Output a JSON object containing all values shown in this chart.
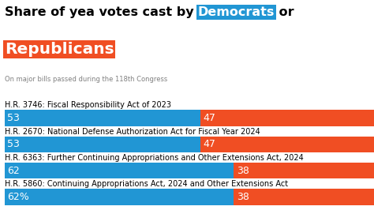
{
  "title_plain": "Share of yea votes cast by ",
  "title_dem": "Democrats",
  "title_or": " or",
  "title_rep": "Republicans",
  "subtitle": "On major bills passed during the 118th Congress",
  "dem_color": "#2196D4",
  "rep_color": "#F04E23",
  "background_color": "#FFFFFF",
  "bars": [
    {
      "label": "H.R. 5860: Continuing Appropriations Act, 2024 and Other Extensions Act",
      "dem": 62,
      "rep": 38,
      "dem_label": "62%",
      "rep_label": "38"
    },
    {
      "label": "H.R. 6363: Further Continuing Appropriations and Other Extensions Act, 2024",
      "dem": 62,
      "rep": 38,
      "dem_label": "62",
      "rep_label": "38"
    },
    {
      "label": "H.R. 2670: National Defense Authorization Act for Fiscal Year 2024",
      "dem": 53,
      "rep": 47,
      "dem_label": "53",
      "rep_label": "47"
    },
    {
      "label": "H.R. 3746: Fiscal Responsibility Act of 2023",
      "dem": 53,
      "rep": 47,
      "dem_label": "53",
      "rep_label": "47"
    }
  ],
  "title_fontsize": 11.5,
  "rep_title_fontsize": 14.5,
  "subtitle_fontsize": 6.0,
  "bar_label_fontsize": 9.0,
  "bill_label_fontsize": 7.0
}
